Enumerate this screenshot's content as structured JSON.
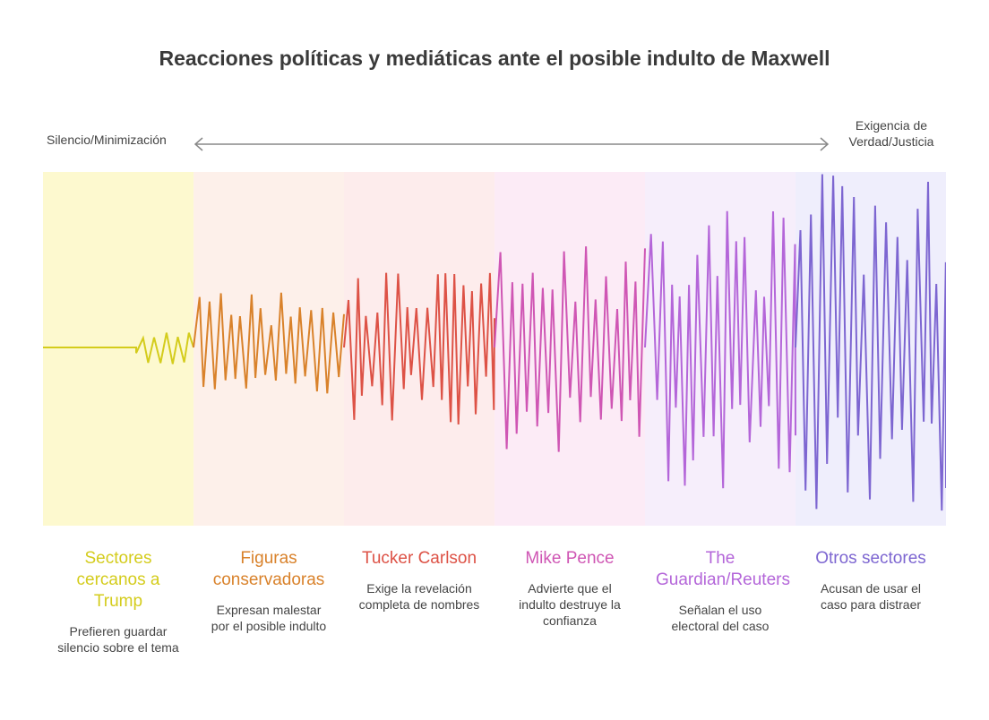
{
  "title": "Reacciones políticas y mediáticas ante el posible indulto de Maxwell",
  "axis": {
    "left_label": "Silencio/Minimización",
    "right_label": "Exigencia de Verdad/Justicia"
  },
  "segments": [
    {
      "name": "Sectores cercanos a Trump",
      "description": "Prefieren guardar silencio sobre el tema",
      "color": "#d4cc1c",
      "bg": "#fdf9cf",
      "intensity": 0.12
    },
    {
      "name": "Figuras conservadoras",
      "description": "Expresan malestar por el posible indulto",
      "color": "#d9822b",
      "bg": "#fdf0ea",
      "intensity": 0.33
    },
    {
      "name": "Tucker Carlson",
      "description": "Exige la revelación completa de nombres",
      "color": "#dd5246",
      "bg": "#fdecec",
      "intensity": 0.45
    },
    {
      "name": "Mike Pence",
      "description": "Advierte que el indulto destruye la confianza",
      "color": "#cf56b4",
      "bg": "#fcebf6",
      "intensity": 0.6
    },
    {
      "name": "The Guardian/Reuters",
      "description": "Señalan el uso electoral del caso",
      "color": "#b466d9",
      "bg": "#f6eefb",
      "intensity": 0.82
    },
    {
      "name": "Otros sectores",
      "description": "Acusan de usar el caso para distraer",
      "color": "#7d66d1",
      "bg": "#efeefc",
      "intensity": 1.0
    }
  ]
}
